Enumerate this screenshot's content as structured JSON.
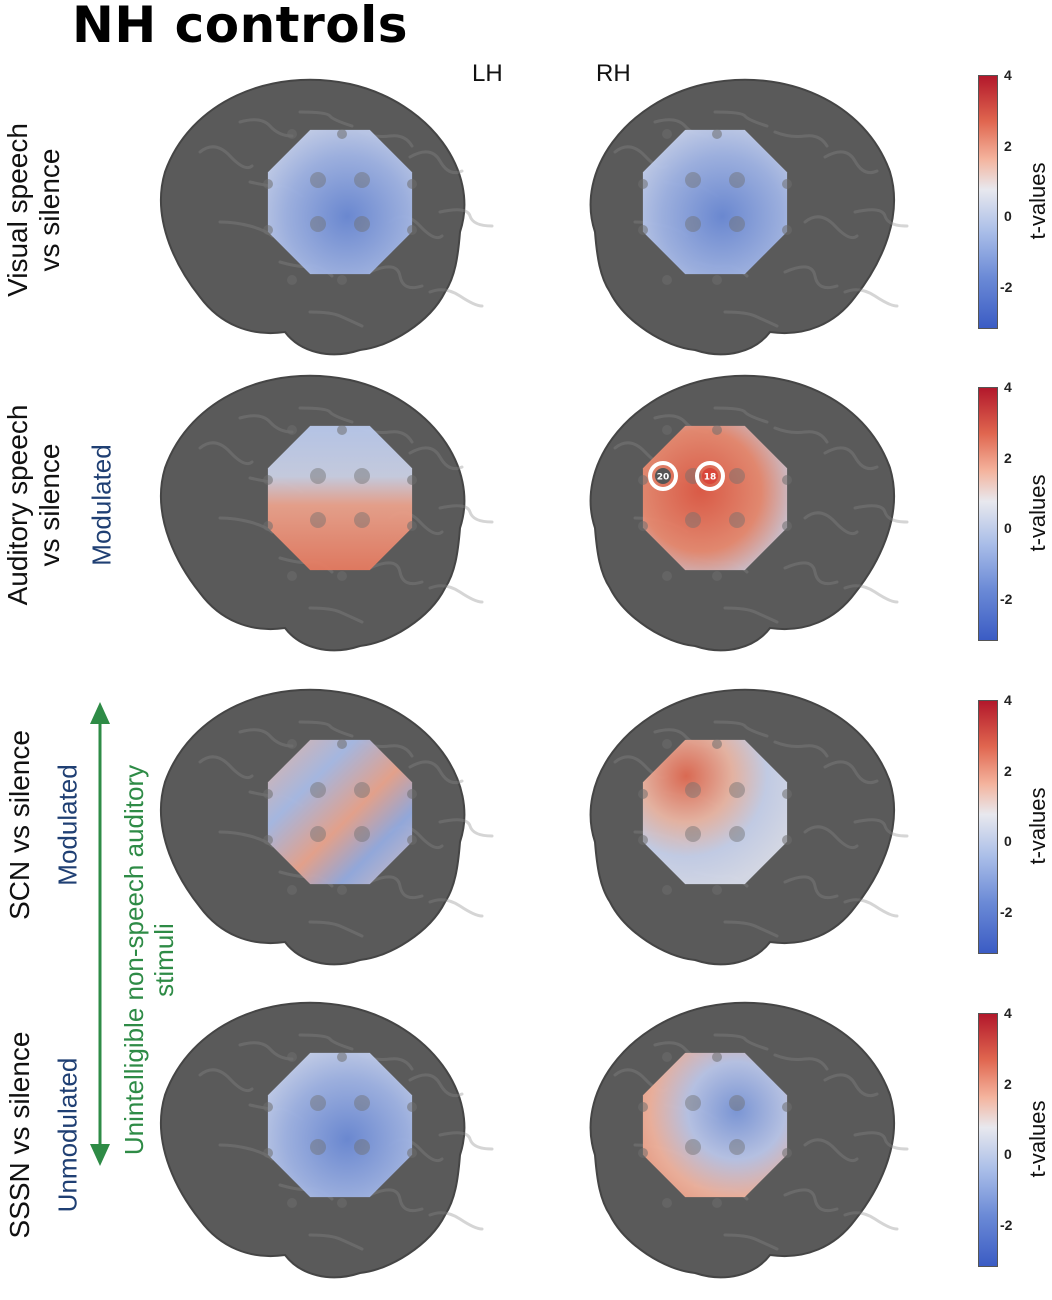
{
  "figure": {
    "title": "NH controls",
    "hemispheres": {
      "left": "LH",
      "right": "RH"
    },
    "rows": [
      {
        "label_line1": "Visual speech",
        "label_line2": "vs silence",
        "sublabel": "",
        "lh_pattern": "blue",
        "rh_pattern": "blue",
        "colorbar": {
          "title": "t-values",
          "ticks": [
            "4",
            "2",
            "0",
            "-2"
          ]
        }
      },
      {
        "label_line1": "Auditory speech",
        "label_line2": "vs silence",
        "sublabel": "Modulated",
        "lh_pattern": "blue-top-red-bottom",
        "rh_pattern": "red",
        "highlighted_channels": [
          "20",
          "18"
        ],
        "colorbar": {
          "title": "t-values",
          "ticks": [
            "4",
            "2",
            "0",
            "-2"
          ]
        }
      },
      {
        "label_line1": "SCN vs silence",
        "label_line2": "",
        "sublabel": "Modulated",
        "lh_pattern": "mixed",
        "rh_pattern": "mixed-red-top",
        "colorbar": {
          "title": "t-values",
          "ticks": [
            "4",
            "2",
            "0",
            "-2"
          ]
        }
      },
      {
        "label_line1": "SSSN vs silence",
        "label_line2": "",
        "sublabel": "Unmodulated",
        "lh_pattern": "blue",
        "rh_pattern": "mixed-red-edge",
        "colorbar": {
          "title": "t-values",
          "ticks": [
            "4",
            "2",
            "0",
            "-2"
          ]
        }
      }
    ],
    "group_annotation": {
      "line1": "Unintelligible non-speech auditory",
      "line2": "stimuli"
    },
    "colors": {
      "accent_blue": "#1f3f73",
      "accent_green": "#2e8b46",
      "brain": "#5a5a5a",
      "map_blue": "#5b7fd0",
      "map_red": "#e0664f",
      "map_neutral": "#dde3ee"
    }
  }
}
